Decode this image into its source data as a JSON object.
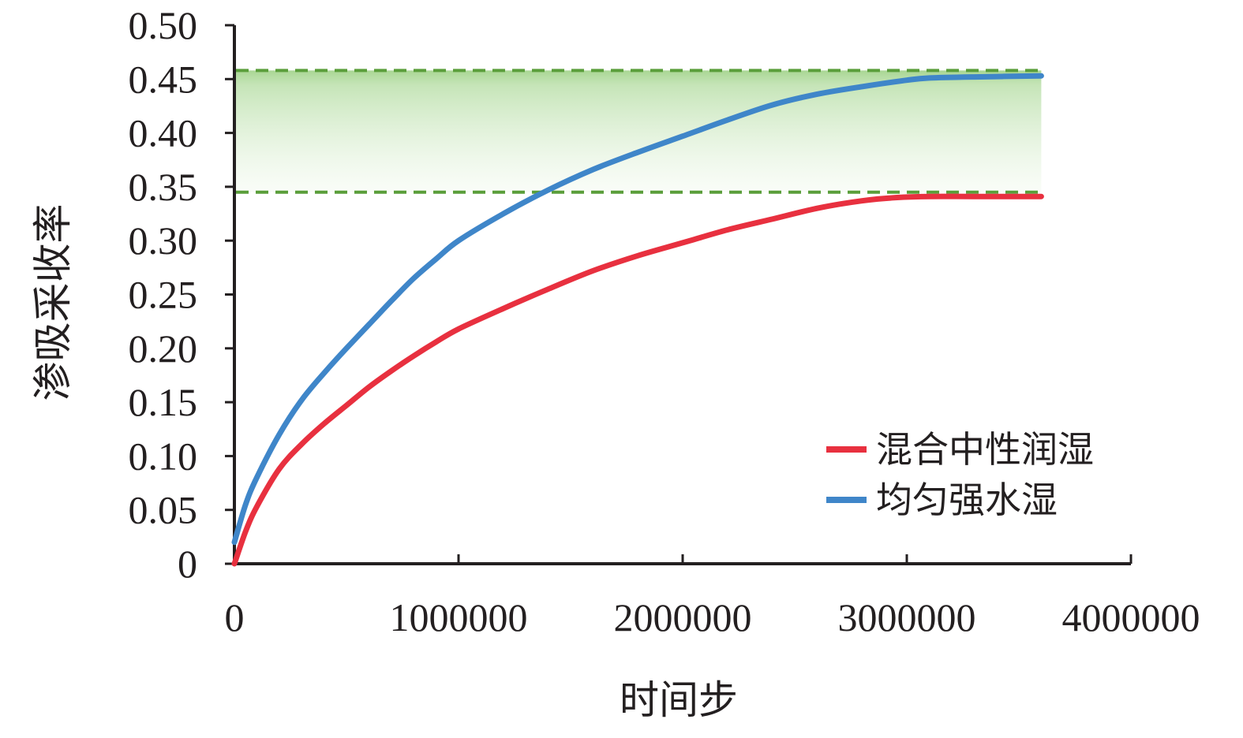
{
  "chart_data": {
    "type": "line",
    "title": "",
    "xlabel": "时间步",
    "ylabel": "渗吸采收率",
    "xlim": [
      0,
      4000000
    ],
    "ylim": [
      0,
      0.5
    ],
    "xticks": [
      0,
      1000000,
      2000000,
      3000000,
      4000000
    ],
    "xtick_labels": [
      "0",
      "1000000",
      "2000000",
      "3000000",
      "4000000"
    ],
    "yticks": [
      0,
      0.05,
      0.1,
      0.15,
      0.2,
      0.25,
      0.3,
      0.35,
      0.4,
      0.45,
      0.5
    ],
    "ytick_labels": [
      "0",
      "0.05",
      "0.10",
      "0.15",
      "0.20",
      "0.25",
      "0.30",
      "0.35",
      "0.40",
      "0.45",
      "0.50"
    ],
    "grid": false,
    "legend_position": "bottom-right",
    "band": {
      "y_low": 0.345,
      "y_high": 0.458,
      "x_end": 3600000,
      "color": "#8cc870",
      "line_color": "#5a9e3a"
    },
    "series": [
      {
        "name": "混合中性润湿",
        "color": "#e8303f",
        "x": [
          0,
          50000,
          100000,
          200000,
          300000,
          400000,
          500000,
          600000,
          700000,
          800000,
          900000,
          1000000,
          1200000,
          1400000,
          1600000,
          1800000,
          2000000,
          2200000,
          2400000,
          2600000,
          2800000,
          2950000,
          3100000,
          3300000,
          3600000
        ],
        "y": [
          0,
          0.03,
          0.053,
          0.088,
          0.111,
          0.13,
          0.147,
          0.164,
          0.179,
          0.193,
          0.206,
          0.218,
          0.237,
          0.255,
          0.272,
          0.286,
          0.298,
          0.31,
          0.32,
          0.33,
          0.337,
          0.34,
          0.341,
          0.341,
          0.341
        ]
      },
      {
        "name": "均匀强水湿",
        "color": "#3f86c9",
        "x": [
          0,
          50000,
          100000,
          200000,
          300000,
          400000,
          500000,
          600000,
          700000,
          800000,
          900000,
          1000000,
          1200000,
          1400000,
          1600000,
          1800000,
          2000000,
          2200000,
          2400000,
          2600000,
          2800000,
          3000000,
          3100000,
          3300000,
          3600000
        ],
        "y": [
          0.02,
          0.055,
          0.08,
          0.12,
          0.152,
          0.177,
          0.2,
          0.222,
          0.244,
          0.265,
          0.283,
          0.3,
          0.325,
          0.347,
          0.366,
          0.382,
          0.397,
          0.412,
          0.426,
          0.436,
          0.443,
          0.449,
          0.451,
          0.452,
          0.453
        ]
      }
    ]
  }
}
